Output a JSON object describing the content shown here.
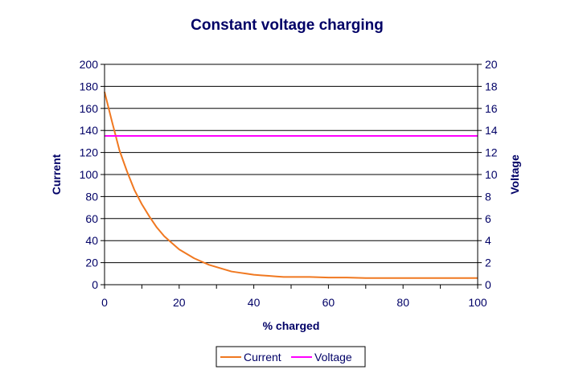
{
  "chart_data": {
    "type": "line",
    "title": "Constant voltage charging",
    "xlabel": "% charged",
    "ylabel_left": "Current",
    "ylabel_right": "Voltage",
    "xlim": [
      0,
      100
    ],
    "ylim_left": [
      0,
      200
    ],
    "ylim_right": [
      0,
      20
    ],
    "x_ticks": [
      "0",
      "20",
      "40",
      "60",
      "80",
      "100"
    ],
    "y_left_ticks": [
      "0",
      "20",
      "40",
      "60",
      "80",
      "100",
      "120",
      "140",
      "160",
      "180",
      "200"
    ],
    "y_right_ticks": [
      "0",
      "2",
      "4",
      "6",
      "8",
      "10",
      "12",
      "14",
      "16",
      "18",
      "20"
    ],
    "grid": true,
    "legend_position": "bottom",
    "series": [
      {
        "name": "Current",
        "axis": "left",
        "color": "#f07820",
        "x": [
          0,
          2,
          4,
          6,
          8,
          10,
          12,
          14,
          16,
          18,
          20,
          22,
          24,
          26,
          28,
          30,
          32,
          34,
          36,
          38,
          40,
          42,
          44,
          46,
          48,
          50,
          55,
          60,
          65,
          70,
          75,
          80,
          85,
          90,
          95,
          100
        ],
        "values": [
          175,
          148,
          122,
          103,
          86,
          73,
          62,
          52,
          44,
          38,
          32,
          28,
          24,
          21,
          18,
          16,
          14,
          12,
          11,
          10,
          9,
          8.5,
          8,
          7.5,
          7,
          7,
          7,
          6.5,
          6.5,
          6,
          6,
          6,
          6,
          6,
          6,
          6
        ]
      },
      {
        "name": "Voltage",
        "axis": "right",
        "color": "#ff00ff",
        "x": [
          0,
          100
        ],
        "values": [
          13.5,
          13.5
        ]
      }
    ]
  }
}
